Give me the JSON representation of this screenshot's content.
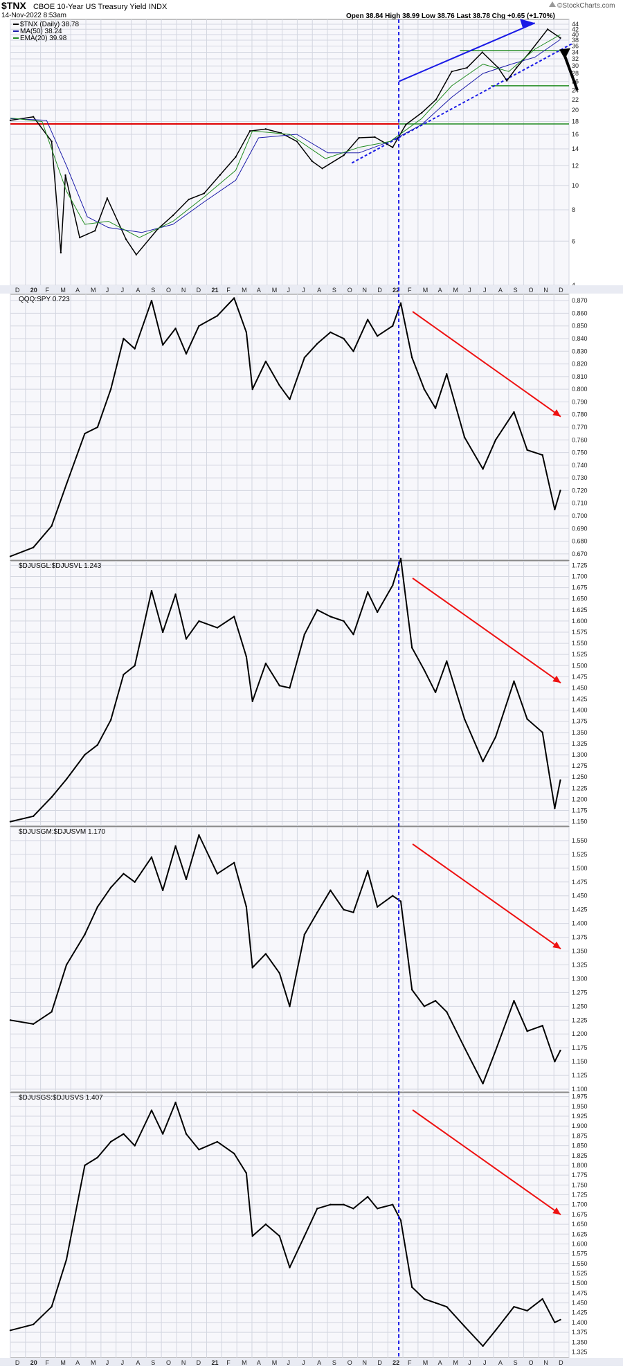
{
  "header": {
    "symbol": "$TNX",
    "description": "CBOE 10-Year US Treasury Yield",
    "exchange": "INDX",
    "date": "14-Nov-2022 8:53am",
    "ohlc": "Open 38.84  High 38.99  Low 38.76  Last 38.78  Chg +0.65 (+1.70%)",
    "source": "©StockCharts.com",
    "arrow_icon": "triangle-up-icon"
  },
  "colors": {
    "price_line": "#000000",
    "ma50": "#1a1aa8",
    "ema20": "#1f8a1f",
    "resistance_red": "#e00000",
    "support_green": "#1f8a1f",
    "trend_blue": "#1a1ae6",
    "annotation_red": "#ee1111",
    "grid": "#d3d6e0",
    "panel_bg": "#f7f7fb",
    "axis_bg": "#e9ebf3"
  },
  "x_axis": {
    "labels": [
      "D",
      "20",
      "F",
      "M",
      "A",
      "M",
      "J",
      "J",
      "A",
      "S",
      "O",
      "N",
      "D",
      "21",
      "F",
      "M",
      "A",
      "M",
      "J",
      "J",
      "A",
      "S",
      "O",
      "N",
      "D",
      "22",
      "F",
      "M",
      "A",
      "M",
      "J",
      "J",
      "A",
      "S",
      "O",
      "N",
      "D"
    ],
    "bold_labels": [
      "20",
      "21",
      "22"
    ],
    "range": [
      "2019-12",
      "2022-12"
    ],
    "divider_date": "2022-01"
  },
  "chart_data": [
    {
      "type": "line",
      "title": "$TNX (Daily) 38.78",
      "legend_position": "top-left",
      "y_scale": "log",
      "ylim": [
        4,
        46
      ],
      "yticks": [
        4,
        6,
        8,
        10,
        12,
        14,
        16,
        18,
        20,
        22,
        24,
        26,
        28,
        30,
        32,
        34,
        36,
        38,
        40,
        42,
        44
      ],
      "series": [
        {
          "name": "$TNX (Daily) 38.78",
          "x": [
            "2019-12-01",
            "2020-01-15",
            "2020-02-20",
            "2020-03-09",
            "2020-03-18",
            "2020-04-15",
            "2020-05-15",
            "2020-06-08",
            "2020-07-15",
            "2020-08-04",
            "2020-09-15",
            "2020-10-15",
            "2020-11-15",
            "2020-12-15",
            "2021-01-15",
            "2021-02-15",
            "2021-03-15",
            "2021-04-15",
            "2021-05-15",
            "2021-06-15",
            "2021-07-15",
            "2021-08-04",
            "2021-09-15",
            "2021-10-15",
            "2021-11-15",
            "2021-12-20",
            "2022-01-15",
            "2022-02-15",
            "2022-03-15",
            "2022-04-15",
            "2022-05-15",
            "2022-06-14",
            "2022-07-15",
            "2022-08-01",
            "2022-08-20",
            "2022-09-15",
            "2022-10-20",
            "2022-11-14"
          ],
          "values": [
            18.2,
            18.8,
            15.0,
            5.4,
            11.0,
            6.2,
            6.6,
            8.9,
            6.1,
            5.3,
            6.7,
            7.6,
            8.8,
            9.3,
            11.0,
            13.0,
            16.5,
            16.8,
            16.2,
            15.0,
            12.5,
            11.7,
            13.2,
            15.5,
            15.6,
            14.2,
            17.5,
            19.5,
            22.0,
            28.5,
            29.5,
            34.0,
            29.5,
            26.2,
            29.5,
            34.0,
            42.0,
            38.78
          ]
        },
        {
          "name": "MA(50) 38.24",
          "x": [
            "2019-12-01",
            "2020-02-10",
            "2020-03-20",
            "2020-04-30",
            "2020-06-10",
            "2020-08-15",
            "2020-10-15",
            "2020-12-15",
            "2021-02-15",
            "2021-04-01",
            "2021-06-15",
            "2021-08-15",
            "2021-10-15",
            "2021-12-15",
            "2022-02-15",
            "2022-04-15",
            "2022-06-15",
            "2022-08-10",
            "2022-09-25",
            "2022-11-14"
          ],
          "values": [
            18.5,
            18.2,
            12.0,
            7.5,
            6.8,
            6.5,
            7.0,
            8.6,
            10.5,
            15.5,
            16.0,
            13.5,
            13.5,
            15.0,
            17.5,
            22.5,
            28.0,
            30.5,
            32.5,
            38.24
          ]
        },
        {
          "name": "EMA(20) 39.98",
          "x": [
            "2019-12-01",
            "2020-02-01",
            "2020-03-20",
            "2020-04-25",
            "2020-06-10",
            "2020-08-10",
            "2020-10-15",
            "2020-12-15",
            "2021-02-15",
            "2021-03-20",
            "2021-06-01",
            "2021-08-10",
            "2021-10-15",
            "2021-12-15",
            "2022-02-15",
            "2022-04-15",
            "2022-06-15",
            "2022-08-05",
            "2022-09-25",
            "2022-11-14"
          ],
          "values": [
            18.6,
            18.0,
            9.5,
            7.0,
            7.2,
            6.2,
            7.2,
            9.0,
            11.5,
            16.5,
            16.0,
            12.8,
            14.2,
            15.0,
            18.5,
            25.0,
            30.5,
            28.5,
            35.0,
            39.98
          ]
        }
      ],
      "annotations": {
        "red_horizontal_level": 17.6,
        "green_horizontal_levels": [
          17.6,
          25.0,
          34.5
        ]
      }
    },
    {
      "type": "line",
      "title": "QQQ:SPY 0.723",
      "legend_position": "top-left",
      "ylim": [
        0.665,
        0.875
      ],
      "yticks": [
        0.67,
        0.68,
        0.69,
        0.7,
        0.71,
        0.72,
        0.73,
        0.74,
        0.75,
        0.76,
        0.77,
        0.78,
        0.79,
        0.8,
        0.81,
        0.82,
        0.83,
        0.84,
        0.85,
        0.86,
        0.87
      ],
      "series": [
        {
          "name": "QQQ:SPY 0.723",
          "x": [
            "2019-12-01",
            "2020-01-15",
            "2020-02-20",
            "2020-03-20",
            "2020-04-25",
            "2020-05-20",
            "2020-06-15",
            "2020-07-10",
            "2020-08-01",
            "2020-09-03",
            "2020-09-25",
            "2020-10-20",
            "2020-11-10",
            "2020-12-05",
            "2021-01-10",
            "2021-02-12",
            "2021-03-08",
            "2021-03-20",
            "2021-04-15",
            "2021-05-12",
            "2021-06-01",
            "2021-06-30",
            "2021-07-25",
            "2021-08-20",
            "2021-09-15",
            "2021-10-04",
            "2021-11-01",
            "2021-11-20",
            "2021-12-20",
            "2022-01-05",
            "2022-01-27",
            "2022-02-20",
            "2022-03-14",
            "2022-04-05",
            "2022-05-10",
            "2022-06-15",
            "2022-07-10",
            "2022-08-15",
            "2022-09-10",
            "2022-10-10",
            "2022-11-03",
            "2022-11-14"
          ],
          "values": [
            0.668,
            0.675,
            0.692,
            0.725,
            0.765,
            0.77,
            0.8,
            0.84,
            0.832,
            0.87,
            0.835,
            0.848,
            0.828,
            0.85,
            0.858,
            0.872,
            0.845,
            0.8,
            0.822,
            0.803,
            0.792,
            0.825,
            0.836,
            0.845,
            0.84,
            0.83,
            0.855,
            0.842,
            0.85,
            0.868,
            0.825,
            0.8,
            0.785,
            0.812,
            0.762,
            0.737,
            0.76,
            0.782,
            0.752,
            0.748,
            0.705,
            0.72
          ]
        }
      ],
      "annotations": {
        "trend_arrow": "down"
      }
    },
    {
      "type": "line",
      "title": "$DJUSGL:$DJUSVL 1.243",
      "legend_position": "top-left",
      "ylim": [
        1.14,
        1.735
      ],
      "yticks": [
        1.15,
        1.175,
        1.2,
        1.225,
        1.25,
        1.275,
        1.3,
        1.325,
        1.35,
        1.375,
        1.4,
        1.425,
        1.45,
        1.475,
        1.5,
        1.525,
        1.55,
        1.575,
        1.6,
        1.625,
        1.65,
        1.675,
        1.7,
        1.725
      ],
      "series": [
        {
          "name": "$DJUSGL:$DJUSVL 1.243",
          "x": [
            "2019-12-01",
            "2020-01-15",
            "2020-02-20",
            "2020-03-20",
            "2020-04-25",
            "2020-05-20",
            "2020-06-15",
            "2020-07-10",
            "2020-08-01",
            "2020-09-03",
            "2020-09-25",
            "2020-10-20",
            "2020-11-10",
            "2020-12-05",
            "2021-01-10",
            "2021-02-12",
            "2021-03-08",
            "2021-03-20",
            "2021-04-15",
            "2021-05-12",
            "2021-06-01",
            "2021-06-30",
            "2021-07-25",
            "2021-08-20",
            "2021-09-15",
            "2021-10-04",
            "2021-11-01",
            "2021-11-20",
            "2021-12-20",
            "2022-01-05",
            "2022-01-27",
            "2022-02-20",
            "2022-03-14",
            "2022-04-05",
            "2022-05-10",
            "2022-06-15",
            "2022-07-10",
            "2022-08-15",
            "2022-09-10",
            "2022-10-10",
            "2022-11-03",
            "2022-11-14"
          ],
          "values": [
            1.15,
            1.162,
            1.205,
            1.245,
            1.3,
            1.322,
            1.378,
            1.48,
            1.5,
            1.668,
            1.575,
            1.66,
            1.56,
            1.6,
            1.585,
            1.61,
            1.52,
            1.42,
            1.505,
            1.455,
            1.45,
            1.57,
            1.625,
            1.61,
            1.6,
            1.57,
            1.665,
            1.62,
            1.68,
            1.74,
            1.54,
            1.49,
            1.44,
            1.51,
            1.38,
            1.285,
            1.34,
            1.465,
            1.38,
            1.35,
            1.18,
            1.243
          ]
        }
      ],
      "annotations": {
        "trend_arrow": "down"
      }
    },
    {
      "type": "line",
      "title": "$DJUSGM:$DJUSVM 1.170",
      "legend_position": "top-left",
      "ylim": [
        1.095,
        1.575
      ],
      "yticks": [
        1.1,
        1.125,
        1.15,
        1.175,
        1.2,
        1.225,
        1.25,
        1.275,
        1.3,
        1.325,
        1.35,
        1.375,
        1.4,
        1.425,
        1.45,
        1.475,
        1.5,
        1.525,
        1.55
      ],
      "series": [
        {
          "name": "$DJUSGM:$DJUSVM 1.170",
          "x": [
            "2019-12-01",
            "2020-01-15",
            "2020-02-20",
            "2020-03-20",
            "2020-04-25",
            "2020-05-20",
            "2020-06-15",
            "2020-07-10",
            "2020-08-01",
            "2020-09-03",
            "2020-09-25",
            "2020-10-20",
            "2020-11-10",
            "2020-12-05",
            "2021-01-10",
            "2021-02-12",
            "2021-03-08",
            "2021-03-20",
            "2021-04-15",
            "2021-05-12",
            "2021-06-01",
            "2021-06-30",
            "2021-07-25",
            "2021-08-20",
            "2021-09-15",
            "2021-10-04",
            "2021-11-01",
            "2021-11-20",
            "2021-12-20",
            "2022-01-05",
            "2022-01-27",
            "2022-02-20",
            "2022-03-14",
            "2022-04-05",
            "2022-05-10",
            "2022-06-15",
            "2022-07-10",
            "2022-08-15",
            "2022-09-10",
            "2022-10-10",
            "2022-11-03",
            "2022-11-14"
          ],
          "values": [
            1.225,
            1.218,
            1.24,
            1.325,
            1.38,
            1.43,
            1.465,
            1.49,
            1.475,
            1.52,
            1.46,
            1.54,
            1.48,
            1.56,
            1.49,
            1.51,
            1.43,
            1.32,
            1.345,
            1.31,
            1.25,
            1.38,
            1.42,
            1.46,
            1.425,
            1.42,
            1.495,
            1.43,
            1.45,
            1.44,
            1.28,
            1.25,
            1.26,
            1.24,
            1.175,
            1.11,
            1.17,
            1.26,
            1.205,
            1.215,
            1.15,
            1.17
          ]
        }
      ],
      "annotations": {
        "trend_arrow": "down"
      }
    },
    {
      "type": "line",
      "title": "$DJUSGS:$DJUSVS 1.407",
      "legend_position": "top-left",
      "ylim": [
        1.31,
        1.985
      ],
      "yticks": [
        1.325,
        1.35,
        1.375,
        1.4,
        1.425,
        1.45,
        1.475,
        1.5,
        1.525,
        1.55,
        1.575,
        1.6,
        1.625,
        1.65,
        1.675,
        1.7,
        1.725,
        1.75,
        1.775,
        1.8,
        1.825,
        1.85,
        1.875,
        1.9,
        1.925,
        1.95,
        1.975
      ],
      "series": [
        {
          "name": "$DJUSGS:$DJUSVS 1.407",
          "x": [
            "2019-12-01",
            "2020-01-15",
            "2020-02-20",
            "2020-03-20",
            "2020-04-25",
            "2020-05-20",
            "2020-06-15",
            "2020-07-10",
            "2020-08-01",
            "2020-09-03",
            "2020-09-25",
            "2020-10-20",
            "2020-11-10",
            "2020-12-05",
            "2021-01-10",
            "2021-02-12",
            "2021-03-08",
            "2021-03-20",
            "2021-04-15",
            "2021-05-12",
            "2021-06-01",
            "2021-06-30",
            "2021-07-25",
            "2021-08-20",
            "2021-09-15",
            "2021-10-04",
            "2021-11-01",
            "2021-11-20",
            "2021-12-20",
            "2022-01-05",
            "2022-01-27",
            "2022-02-20",
            "2022-03-14",
            "2022-04-05",
            "2022-05-10",
            "2022-06-15",
            "2022-07-10",
            "2022-08-15",
            "2022-09-10",
            "2022-10-10",
            "2022-11-03",
            "2022-11-14"
          ],
          "values": [
            1.38,
            1.395,
            1.44,
            1.56,
            1.8,
            1.82,
            1.86,
            1.88,
            1.85,
            1.94,
            1.88,
            1.96,
            1.88,
            1.84,
            1.86,
            1.83,
            1.78,
            1.62,
            1.65,
            1.62,
            1.54,
            1.62,
            1.69,
            1.7,
            1.7,
            1.69,
            1.72,
            1.69,
            1.7,
            1.66,
            1.49,
            1.46,
            1.45,
            1.44,
            1.39,
            1.34,
            1.38,
            1.44,
            1.43,
            1.46,
            1.4,
            1.407
          ]
        }
      ],
      "annotations": {
        "trend_arrow": "down"
      }
    }
  ]
}
